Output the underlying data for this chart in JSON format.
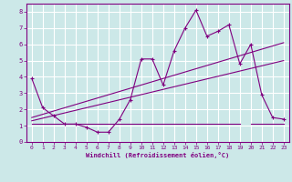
{
  "xlabel": "Windchill (Refroidissement éolien,°C)",
  "bg_color": "#cce8e8",
  "line_color": "#800080",
  "grid_color": "#ffffff",
  "xlim": [
    -0.5,
    23.5
  ],
  "ylim": [
    0,
    8.5
  ],
  "xticks": [
    0,
    1,
    2,
    3,
    4,
    5,
    6,
    7,
    8,
    9,
    10,
    11,
    12,
    13,
    14,
    15,
    16,
    17,
    18,
    19,
    20,
    21,
    22,
    23
  ],
  "yticks": [
    0,
    1,
    2,
    3,
    4,
    5,
    6,
    7,
    8
  ],
  "data_line": {
    "x": [
      0,
      1,
      2,
      3,
      4,
      5,
      6,
      7,
      8,
      9,
      10,
      11,
      12,
      13,
      14,
      15,
      16,
      17,
      18,
      19,
      20,
      21,
      22,
      23
    ],
    "y": [
      3.9,
      2.1,
      1.6,
      1.1,
      1.1,
      0.9,
      0.6,
      0.6,
      1.4,
      2.6,
      5.1,
      5.1,
      3.5,
      5.6,
      7.0,
      8.1,
      6.5,
      6.8,
      7.2,
      4.8,
      6.0,
      2.9,
      1.5,
      1.4
    ]
  },
  "upper_line": {
    "x": [
      0,
      23
    ],
    "y": [
      1.5,
      6.1
    ]
  },
  "lower_line": {
    "x": [
      0,
      23
    ],
    "y": [
      1.3,
      5.0
    ]
  },
  "flat_line": {
    "x": [
      0,
      19
    ],
    "y": [
      1.1,
      1.1
    ]
  },
  "flat_line2": {
    "x": [
      20,
      23
    ],
    "y": [
      1.1,
      1.1
    ]
  }
}
